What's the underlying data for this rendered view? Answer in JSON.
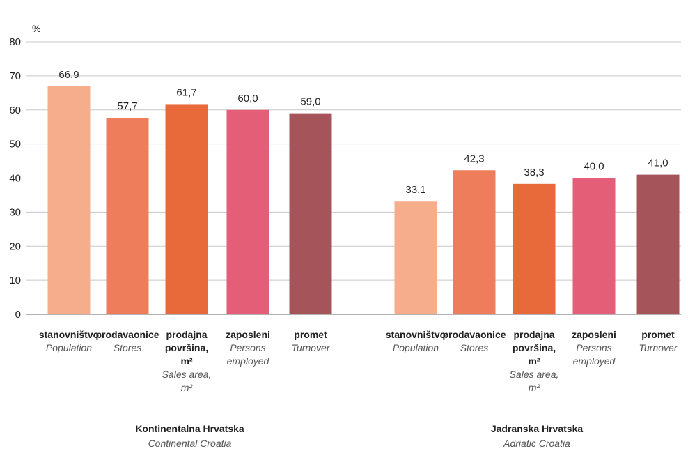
{
  "chart_data": {
    "type": "bar",
    "ylabel": "%",
    "ylim": [
      0,
      80
    ],
    "yticks": [
      0,
      10,
      20,
      30,
      40,
      50,
      60,
      70,
      80
    ],
    "grid": true,
    "categories": [
      {
        "label_hr": [
          "stanovništvo"
        ],
        "label_en": [
          "Population"
        ],
        "color": "#F6AD8B"
      },
      {
        "label_hr": [
          "prodavaonice"
        ],
        "label_en": [
          "Stores"
        ],
        "color": "#EE7D5B"
      },
      {
        "label_hr": [
          "prodajna",
          "površina,",
          "m²"
        ],
        "label_en": [
          "Sales area,",
          "m²"
        ],
        "color": "#E8693A"
      },
      {
        "label_hr": [
          "zaposleni"
        ],
        "label_en": [
          "Persons",
          "employed"
        ],
        "color": "#E45E78"
      },
      {
        "label_hr": [
          "promet"
        ],
        "label_en": [
          "Turnover"
        ],
        "color": "#A5545A"
      }
    ],
    "groups": [
      {
        "name_hr": "Kontinentalna Hrvatska",
        "name_en": "Continental Croatia",
        "values": [
          66.9,
          57.7,
          61.7,
          60.0,
          59.0
        ],
        "value_labels": [
          "66,9",
          "57,7",
          "61,7",
          "60,0",
          "59,0"
        ]
      },
      {
        "name_hr": "Jadranska Hrvatska",
        "name_en": "Adriatic Croatia",
        "values": [
          33.1,
          42.3,
          38.3,
          40.0,
          41.0
        ],
        "value_labels": [
          "33,1",
          "42,3",
          "38,3",
          "40,0",
          "41,0"
        ]
      }
    ]
  }
}
